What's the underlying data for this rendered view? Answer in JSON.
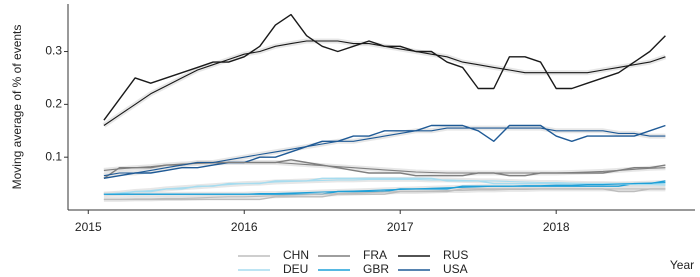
{
  "chart_data": {
    "type": "line",
    "x_label": "Year",
    "y_label": "Moving average of % of events",
    "xlim": [
      2014.87,
      2018.89
    ],
    "xticks": [
      2015,
      2016,
      2017,
      2018
    ],
    "ylim": [
      0,
      0.39
    ],
    "yticks": [
      0.1,
      0.2,
      0.3
    ],
    "x": [
      2015.1,
      2015.2,
      2015.3,
      2015.4,
      2015.5,
      2015.6,
      2015.7,
      2015.8,
      2015.9,
      2016.0,
      2016.1,
      2016.2,
      2016.3,
      2016.4,
      2016.5,
      2016.6,
      2016.7,
      2016.8,
      2016.9,
      2017.0,
      2017.1,
      2017.2,
      2017.3,
      2017.4,
      2017.5,
      2017.6,
      2017.7,
      2017.8,
      2017.9,
      2018.0,
      2018.1,
      2018.2,
      2018.3,
      2018.4,
      2018.5,
      2018.6,
      2018.7
    ],
    "series": [
      {
        "name": "CHN",
        "color": "#bdbdbd",
        "values": [
          0.02,
          0.02,
          0.02,
          0.02,
          0.02,
          0.02,
          0.02,
          0.02,
          0.02,
          0.02,
          0.02,
          0.025,
          0.025,
          0.025,
          0.025,
          0.03,
          0.03,
          0.03,
          0.03,
          0.035,
          0.035,
          0.035,
          0.035,
          0.04,
          0.04,
          0.04,
          0.04,
          0.04,
          0.04,
          0.04,
          0.04,
          0.04,
          0.04,
          0.035,
          0.035,
          0.04,
          0.04
        ],
        "trend": [
          0.02,
          0.02,
          0.021,
          0.021,
          0.022,
          0.022,
          0.023,
          0.024,
          0.025,
          0.025,
          0.026,
          0.027,
          0.028,
          0.029,
          0.03,
          0.031,
          0.032,
          0.033,
          0.034,
          0.035,
          0.035,
          0.036,
          0.037,
          0.037,
          0.038,
          0.038,
          0.039,
          0.039,
          0.04,
          0.04,
          0.04,
          0.04,
          0.04,
          0.04,
          0.04,
          0.04,
          0.04
        ]
      },
      {
        "name": "DEU",
        "color": "#a6dcef",
        "values": [
          0.03,
          0.03,
          0.035,
          0.035,
          0.04,
          0.04,
          0.045,
          0.045,
          0.05,
          0.05,
          0.05,
          0.055,
          0.055,
          0.055,
          0.06,
          0.06,
          0.06,
          0.06,
          0.06,
          0.06,
          0.06,
          0.06,
          0.055,
          0.055,
          0.055,
          0.05,
          0.05,
          0.05,
          0.05,
          0.05,
          0.05,
          0.05,
          0.05,
          0.05,
          0.05,
          0.05,
          0.05
        ],
        "trend": [
          0.03,
          0.032,
          0.035,
          0.037,
          0.04,
          0.042,
          0.044,
          0.046,
          0.048,
          0.05,
          0.051,
          0.053,
          0.054,
          0.055,
          0.056,
          0.057,
          0.057,
          0.058,
          0.058,
          0.058,
          0.058,
          0.057,
          0.057,
          0.056,
          0.055,
          0.055,
          0.054,
          0.053,
          0.052,
          0.052,
          0.051,
          0.05,
          0.05,
          0.049,
          0.048,
          0.048,
          0.047
        ]
      },
      {
        "name": "FRA",
        "color": "#7f7f7f",
        "values": [
          0.06,
          0.08,
          0.08,
          0.08,
          0.085,
          0.085,
          0.09,
          0.09,
          0.09,
          0.09,
          0.09,
          0.09,
          0.095,
          0.09,
          0.085,
          0.08,
          0.075,
          0.07,
          0.07,
          0.07,
          0.065,
          0.065,
          0.065,
          0.065,
          0.07,
          0.07,
          0.065,
          0.065,
          0.07,
          0.07,
          0.07,
          0.07,
          0.07,
          0.075,
          0.08,
          0.08,
          0.085
        ],
        "trend": [
          0.075,
          0.078,
          0.08,
          0.082,
          0.085,
          0.087,
          0.088,
          0.089,
          0.09,
          0.09,
          0.09,
          0.09,
          0.088,
          0.086,
          0.084,
          0.082,
          0.08,
          0.078,
          0.076,
          0.074,
          0.072,
          0.071,
          0.07,
          0.07,
          0.07,
          0.07,
          0.07,
          0.07,
          0.07,
          0.07,
          0.071,
          0.072,
          0.073,
          0.075,
          0.077,
          0.079,
          0.08
        ]
      },
      {
        "name": "GBR",
        "color": "#1fa0d8",
        "values": [
          0.03,
          0.03,
          0.03,
          0.03,
          0.03,
          0.03,
          0.03,
          0.03,
          0.03,
          0.03,
          0.03,
          0.03,
          0.03,
          0.03,
          0.03,
          0.035,
          0.035,
          0.035,
          0.035,
          0.04,
          0.04,
          0.04,
          0.04,
          0.045,
          0.045,
          0.045,
          0.045,
          0.045,
          0.045,
          0.045,
          0.045,
          0.045,
          0.045,
          0.045,
          0.05,
          0.05,
          0.055
        ],
        "trend": [
          0.03,
          0.03,
          0.03,
          0.03,
          0.03,
          0.03,
          0.03,
          0.03,
          0.03,
          0.03,
          0.031,
          0.031,
          0.032,
          0.033,
          0.034,
          0.035,
          0.036,
          0.037,
          0.038,
          0.039,
          0.04,
          0.041,
          0.042,
          0.043,
          0.044,
          0.045,
          0.045,
          0.046,
          0.046,
          0.047,
          0.047,
          0.048,
          0.048,
          0.049,
          0.05,
          0.051,
          0.052
        ]
      },
      {
        "name": "RUS",
        "color": "#1a1a1a",
        "values": [
          0.17,
          0.21,
          0.25,
          0.24,
          0.25,
          0.26,
          0.27,
          0.28,
          0.28,
          0.29,
          0.31,
          0.35,
          0.37,
          0.33,
          0.31,
          0.3,
          0.31,
          0.32,
          0.31,
          0.31,
          0.3,
          0.3,
          0.28,
          0.27,
          0.23,
          0.23,
          0.29,
          0.29,
          0.28,
          0.23,
          0.23,
          0.24,
          0.25,
          0.26,
          0.28,
          0.3,
          0.33
        ],
        "trend": [
          0.16,
          0.18,
          0.2,
          0.22,
          0.235,
          0.25,
          0.265,
          0.275,
          0.285,
          0.295,
          0.3,
          0.31,
          0.315,
          0.32,
          0.32,
          0.32,
          0.315,
          0.315,
          0.31,
          0.305,
          0.3,
          0.295,
          0.29,
          0.28,
          0.275,
          0.27,
          0.265,
          0.26,
          0.26,
          0.26,
          0.26,
          0.26,
          0.265,
          0.27,
          0.275,
          0.28,
          0.29
        ]
      },
      {
        "name": "USA",
        "color": "#1f5a96",
        "values": [
          0.06,
          0.065,
          0.07,
          0.07,
          0.075,
          0.08,
          0.08,
          0.085,
          0.09,
          0.09,
          0.1,
          0.1,
          0.11,
          0.12,
          0.13,
          0.13,
          0.14,
          0.14,
          0.15,
          0.15,
          0.15,
          0.16,
          0.16,
          0.16,
          0.15,
          0.13,
          0.16,
          0.16,
          0.16,
          0.14,
          0.13,
          0.14,
          0.14,
          0.14,
          0.14,
          0.15,
          0.16
        ],
        "trend": [
          0.065,
          0.07,
          0.07,
          0.075,
          0.08,
          0.085,
          0.09,
          0.09,
          0.095,
          0.1,
          0.105,
          0.11,
          0.115,
          0.12,
          0.125,
          0.13,
          0.13,
          0.135,
          0.14,
          0.145,
          0.15,
          0.15,
          0.155,
          0.155,
          0.155,
          0.155,
          0.155,
          0.155,
          0.155,
          0.15,
          0.15,
          0.15,
          0.15,
          0.145,
          0.145,
          0.14,
          0.14
        ]
      }
    ]
  }
}
